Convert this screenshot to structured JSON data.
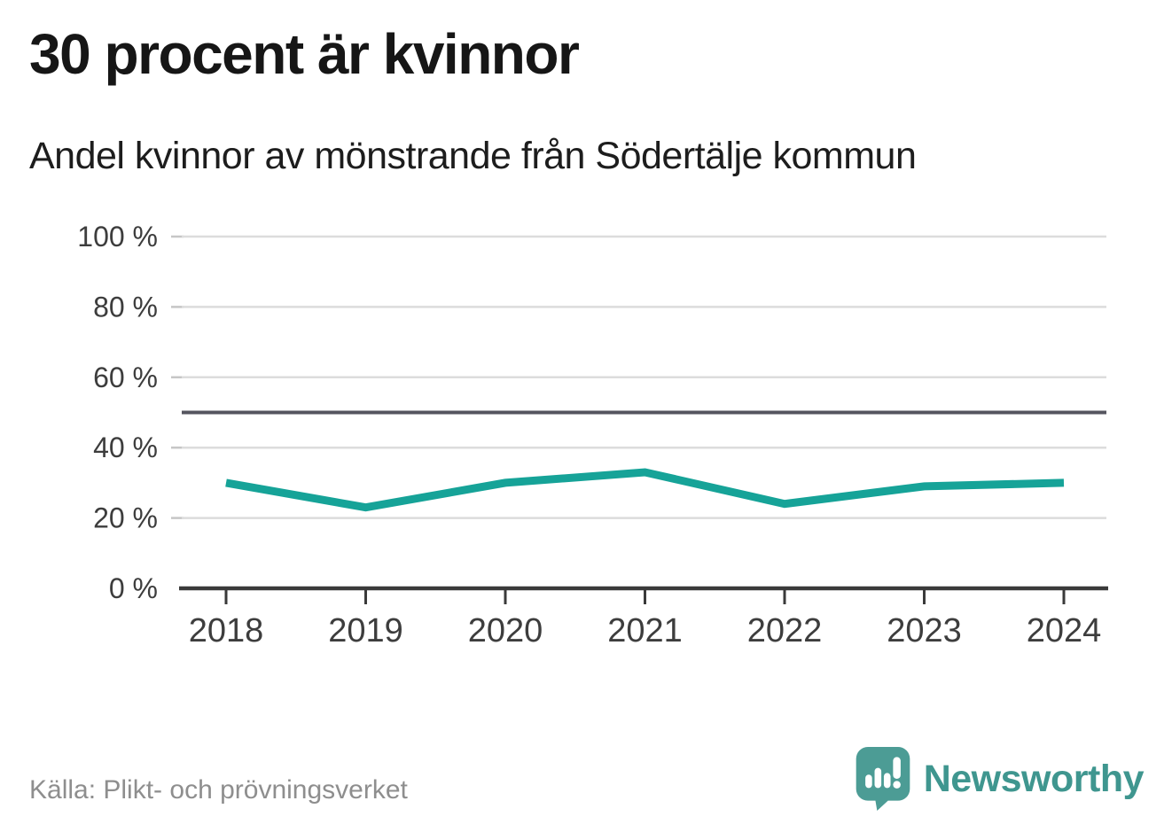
{
  "chart_data": {
    "type": "line",
    "title": "30 procent är kvinnor",
    "subtitle": "Andel kvinnor av mönstrande från Södertälje kommun",
    "x": [
      "2018",
      "2019",
      "2020",
      "2021",
      "2022",
      "2023",
      "2024"
    ],
    "series": [
      {
        "name": "Andel kvinnor av mönstrande",
        "values": [
          30,
          23,
          30,
          33,
          24,
          29,
          30
        ]
      }
    ],
    "unit": "%",
    "ylim": [
      0,
      100
    ],
    "yticks": [
      0,
      20,
      40,
      60,
      80,
      100
    ],
    "ytick_suffix": " %",
    "reference_line": {
      "value": 50
    },
    "grid": true,
    "legend": "none",
    "source": "Källa: Plikt- och prövningsverket"
  },
  "footer": {
    "brand_name": "Newsworthy",
    "logo_icon": "speech-bubble-bar-chart-exclamation"
  },
  "colors": {
    "line": "#16a398",
    "grid": "#dcdcdc",
    "grid_tick": "#c6c6c6",
    "axis": "#3a3a3a",
    "reference": "#55555f",
    "tick_label": "#3d3d3d",
    "title": "#161616",
    "subtitle": "#1d1d1d",
    "source": "#8e8e8e",
    "brand_text": "#3f968f",
    "logo_mark": "#4c9c95"
  }
}
